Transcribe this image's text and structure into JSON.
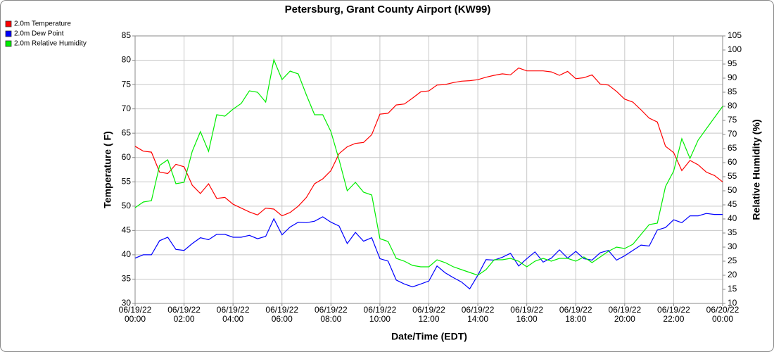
{
  "chart_data": {
    "type": "line",
    "title": "Petersburg, Grant County Airport (KW99)",
    "x_label": "Date/Time (EDT)",
    "y_label": "Temperature ( F)",
    "y2_label": "Relative Humidity (%)",
    "x": [
      "06/19/22 00:00",
      "06/19/22 00:20",
      "06/19/22 00:40",
      "06/19/22 01:00",
      "06/19/22 01:20",
      "06/19/22 01:40",
      "06/19/22 02:00",
      "06/19/22 02:20",
      "06/19/22 02:40",
      "06/19/22 03:00",
      "06/19/22 03:20",
      "06/19/22 03:40",
      "06/19/22 04:00",
      "06/19/22 04:20",
      "06/19/22 04:40",
      "06/19/22 05:00",
      "06/19/22 05:20",
      "06/19/22 05:40",
      "06/19/22 06:00",
      "06/19/22 06:20",
      "06/19/22 06:40",
      "06/19/22 07:00",
      "06/19/22 07:20",
      "06/19/22 07:40",
      "06/19/22 08:00",
      "06/19/22 08:20",
      "06/19/22 08:40",
      "06/19/22 09:00",
      "06/19/22 09:20",
      "06/19/22 09:40",
      "06/19/22 10:00",
      "06/19/22 10:20",
      "06/19/22 10:40",
      "06/19/22 11:00",
      "06/19/22 11:20",
      "06/19/22 11:40",
      "06/19/22 12:00",
      "06/19/22 12:20",
      "06/19/22 12:40",
      "06/19/22 13:00",
      "06/19/22 13:20",
      "06/19/22 13:40",
      "06/19/22 14:00",
      "06/19/22 14:20",
      "06/19/22 14:40",
      "06/19/22 15:00",
      "06/19/22 15:20",
      "06/19/22 15:40",
      "06/19/22 16:00",
      "06/19/22 16:20",
      "06/19/22 16:40",
      "06/19/22 17:00",
      "06/19/22 17:20",
      "06/19/22 17:40",
      "06/19/22 18:00",
      "06/19/22 18:20",
      "06/19/22 18:40",
      "06/19/22 19:00",
      "06/19/22 19:20",
      "06/19/22 19:40",
      "06/19/22 20:00",
      "06/19/22 20:20",
      "06/19/22 20:40",
      "06/19/22 21:00",
      "06/19/22 21:20",
      "06/19/22 21:40",
      "06/19/22 22:00",
      "06/19/22 22:20",
      "06/19/22 22:40",
      "06/19/22 23:00",
      "06/19/22 23:20",
      "06/19/22 23:40",
      "06/20/22 00:00"
    ],
    "series": [
      {
        "name": "2.0m Temperature",
        "color": "#ff0000",
        "values": [
          62.3,
          61.3,
          61.1,
          57.0,
          56.7,
          58.6,
          58.1,
          54.3,
          52.6,
          54.6,
          51.6,
          51.8,
          50.4,
          49.6,
          48.8,
          48.2,
          49.6,
          49.4,
          48.0,
          48.7,
          50.0,
          51.8,
          54.6,
          55.6,
          57.3,
          60.8,
          62.2,
          62.9,
          63.1,
          64.7,
          68.9,
          69.1,
          70.8,
          71.0,
          72.2,
          73.5,
          73.7,
          74.9,
          75.0,
          75.4,
          75.7,
          75.8,
          76.0,
          76.5,
          76.9,
          77.2,
          77.0,
          78.4,
          77.8,
          77.8,
          77.8,
          77.6,
          76.9,
          77.7,
          76.2,
          76.4,
          77.0,
          75.1,
          74.9,
          73.6,
          72.0,
          71.4,
          69.8,
          68.1,
          67.3,
          62.3,
          61.0,
          57.3,
          59.4,
          58.5,
          57.0,
          56.3,
          55.0
        ]
      },
      {
        "name": "2.0m Dew Point",
        "color": "#0000ff",
        "values": [
          39.3,
          40.0,
          40.0,
          42.9,
          43.6,
          41.1,
          40.9,
          42.3,
          43.5,
          43.1,
          44.2,
          44.2,
          43.6,
          43.6,
          44.0,
          43.3,
          43.8,
          47.4,
          44.1,
          45.7,
          46.7,
          46.6,
          46.9,
          47.8,
          46.7,
          45.9,
          42.3,
          44.6,
          42.8,
          43.5,
          39.2,
          38.7,
          34.8,
          34.0,
          33.4,
          34.0,
          34.6,
          37.7,
          36.3,
          35.3,
          34.4,
          33.0,
          35.8,
          39.0,
          38.9,
          39.5,
          40.3,
          37.7,
          39.2,
          40.6,
          38.5,
          39.3,
          41.0,
          39.3,
          40.7,
          39.2,
          38.9,
          40.4,
          40.9,
          38.9,
          39.8,
          40.9,
          42.0,
          41.8,
          45.1,
          45.6,
          47.2,
          46.6,
          48.0,
          48.0,
          48.5,
          48.3,
          48.3
        ]
      },
      {
        "name": "2.0m Relative Humidity",
        "color": "#00ee00",
        "axis": "y2",
        "values": [
          44,
          46,
          46.5,
          59,
          61,
          52.5,
          53,
          64,
          71,
          64,
          77,
          76.5,
          79,
          81,
          85.5,
          85,
          81.5,
          96.5,
          89.5,
          92.5,
          91.5,
          84,
          77,
          77,
          71,
          61,
          50,
          53,
          49.5,
          48.5,
          33,
          32,
          26,
          25,
          23.5,
          23,
          23,
          25.5,
          24.5,
          23,
          22,
          21,
          20,
          22,
          25.5,
          25.5,
          26,
          25,
          23,
          25,
          26,
          25,
          26,
          26,
          25,
          26.5,
          24.5,
          26.5,
          28.5,
          30,
          29.5,
          31,
          34.5,
          38,
          38.5,
          51.5,
          57,
          68.5,
          61.5,
          68,
          72,
          76,
          80
        ]
      }
    ],
    "xlim": [
      "06/19/22 00:00",
      "06/20/22 00:00"
    ],
    "xticks": [
      "06/19/22 00:00",
      "06/19/22 02:00",
      "06/19/22 04:00",
      "06/19/22 06:00",
      "06/19/22 08:00",
      "06/19/22 10:00",
      "06/19/22 12:00",
      "06/19/22 14:00",
      "06/19/22 16:00",
      "06/19/22 18:00",
      "06/19/22 20:00",
      "06/19/22 22:00",
      "06/20/22 00:00"
    ],
    "ylim": [
      30,
      85
    ],
    "yticks": [
      30,
      35,
      40,
      45,
      50,
      55,
      60,
      65,
      70,
      75,
      80,
      85
    ],
    "y2lim": [
      10,
      105
    ],
    "y2ticks": [
      10,
      15,
      20,
      25,
      30,
      35,
      40,
      45,
      50,
      55,
      60,
      65,
      70,
      75,
      80,
      85,
      90,
      95,
      100,
      105
    ],
    "grid": true,
    "legend": "top-left"
  }
}
